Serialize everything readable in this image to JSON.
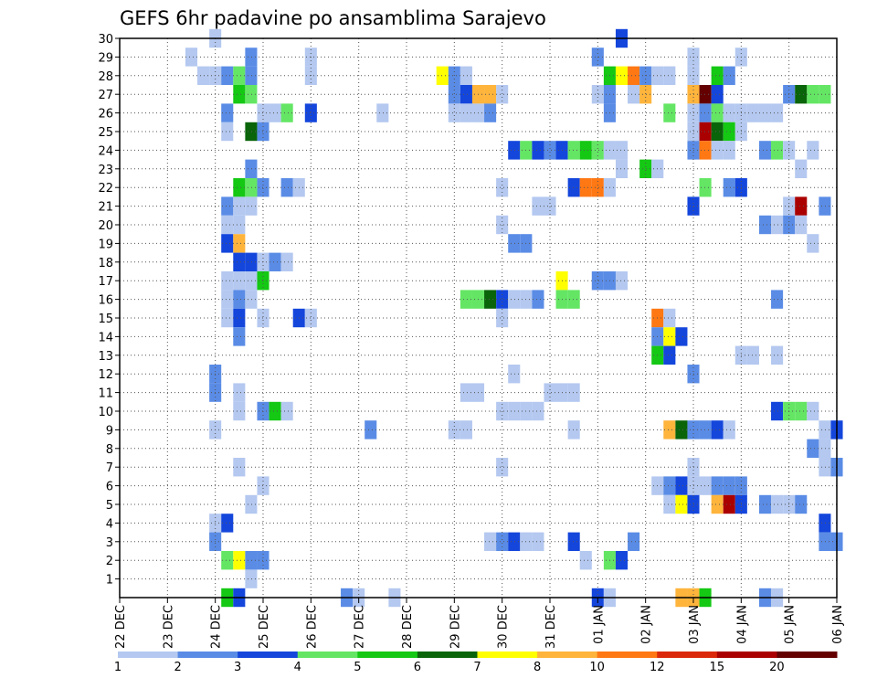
{
  "chart_data": {
    "type": "heatmap",
    "title": "GEFS 6hr padavine po ansamblima Sarajevo",
    "x_labels": [
      "22 DEC",
      "23 DEC",
      "24 DEC",
      "25 DEC",
      "26 DEC",
      "27 DEC",
      "28 DEC",
      "29 DEC",
      "30 DEC",
      "31 DEC",
      "01 JAN",
      "02 JAN",
      "03 JAN",
      "04 JAN",
      "05 JAN",
      "06 JAN"
    ],
    "y_labels": [
      "1",
      "2",
      "3",
      "4",
      "5",
      "6",
      "7",
      "8",
      "9",
      "10",
      "11",
      "12",
      "13",
      "14",
      "15",
      "16",
      "17",
      "18",
      "19",
      "20",
      "21",
      "22",
      "23",
      "24",
      "25",
      "26",
      "27",
      "28",
      "29",
      "30"
    ],
    "y_range": [
      0,
      30
    ],
    "x_steps": 60,
    "grid": true,
    "legend": {
      "placement": "bottom",
      "labels": [
        "1",
        "2",
        "3",
        "4",
        "5",
        "6",
        "7",
        "8",
        "10",
        "12",
        "15",
        "20"
      ],
      "colors": [
        "#b4c8f0",
        "#5a8ce6",
        "#1446dc",
        "#64e664",
        "#14c814",
        "#0a640a",
        "#ffff00",
        "#ffb43c",
        "#ff7814",
        "#dc280a",
        "#aa0000",
        "#640000"
      ]
    },
    "levels": [
      1,
      2,
      3,
      4,
      5,
      6,
      7,
      8,
      10,
      12,
      15,
      20
    ],
    "cells": [
      [
        8,
        30,
        1
      ],
      [
        42,
        30,
        3
      ],
      [
        6,
        29,
        1
      ],
      [
        11,
        29,
        2
      ],
      [
        16,
        29,
        1
      ],
      [
        40,
        29,
        2
      ],
      [
        48,
        29,
        1
      ],
      [
        52,
        29,
        1
      ],
      [
        7,
        28,
        1
      ],
      [
        8,
        28,
        1
      ],
      [
        9,
        28,
        2
      ],
      [
        10,
        28,
        4
      ],
      [
        11,
        28,
        2
      ],
      [
        16,
        28,
        1
      ],
      [
        27,
        28,
        7
      ],
      [
        28,
        28,
        2
      ],
      [
        29,
        28,
        1
      ],
      [
        41,
        28,
        5
      ],
      [
        42,
        28,
        7
      ],
      [
        43,
        28,
        9
      ],
      [
        44,
        28,
        2
      ],
      [
        45,
        28,
        1
      ],
      [
        46,
        28,
        1
      ],
      [
        48,
        28,
        1
      ],
      [
        50,
        28,
        5
      ],
      [
        51,
        28,
        2
      ],
      [
        10,
        27,
        5
      ],
      [
        11,
        27,
        4
      ],
      [
        28,
        27,
        2
      ],
      [
        29,
        27,
        3
      ],
      [
        30,
        27,
        8
      ],
      [
        31,
        27,
        8
      ],
      [
        32,
        27,
        1
      ],
      [
        40,
        27,
        1
      ],
      [
        41,
        27,
        2
      ],
      [
        43,
        27,
        1
      ],
      [
        44,
        27,
        8
      ],
      [
        48,
        27,
        8
      ],
      [
        49,
        27,
        12
      ],
      [
        50,
        27,
        3
      ],
      [
        56,
        27,
        2
      ],
      [
        57,
        27,
        6
      ],
      [
        58,
        27,
        4
      ],
      [
        59,
        27,
        4
      ],
      [
        9,
        26,
        2
      ],
      [
        12,
        26,
        1
      ],
      [
        13,
        26,
        1
      ],
      [
        14,
        26,
        4
      ],
      [
        16,
        26,
        3
      ],
      [
        22,
        26,
        1
      ],
      [
        28,
        26,
        1
      ],
      [
        29,
        26,
        1
      ],
      [
        30,
        26,
        1
      ],
      [
        31,
        26,
        2
      ],
      [
        41,
        26,
        2
      ],
      [
        46,
        26,
        4
      ],
      [
        48,
        26,
        1
      ],
      [
        49,
        26,
        2
      ],
      [
        50,
        26,
        4
      ],
      [
        51,
        26,
        1
      ],
      [
        52,
        26,
        1
      ],
      [
        53,
        26,
        1
      ],
      [
        54,
        26,
        1
      ],
      [
        55,
        26,
        1
      ],
      [
        9,
        25,
        1
      ],
      [
        11,
        25,
        6
      ],
      [
        12,
        25,
        2
      ],
      [
        48,
        25,
        1
      ],
      [
        49,
        25,
        11
      ],
      [
        50,
        25,
        6
      ],
      [
        51,
        25,
        5
      ],
      [
        52,
        25,
        1
      ],
      [
        33,
        24,
        3
      ],
      [
        34,
        24,
        4
      ],
      [
        35,
        24,
        3
      ],
      [
        36,
        24,
        2
      ],
      [
        37,
        24,
        3
      ],
      [
        38,
        24,
        4
      ],
      [
        39,
        24,
        5
      ],
      [
        40,
        24,
        4
      ],
      [
        41,
        24,
        1
      ],
      [
        42,
        24,
        1
      ],
      [
        48,
        24,
        2
      ],
      [
        49,
        24,
        9
      ],
      [
        50,
        24,
        1
      ],
      [
        51,
        24,
        1
      ],
      [
        54,
        24,
        2
      ],
      [
        55,
        24,
        4
      ],
      [
        56,
        24,
        1
      ],
      [
        58,
        24,
        1
      ],
      [
        11,
        23,
        2
      ],
      [
        42,
        23,
        1
      ],
      [
        44,
        23,
        5
      ],
      [
        45,
        23,
        1
      ],
      [
        57,
        23,
        1
      ],
      [
        10,
        22,
        5
      ],
      [
        11,
        22,
        4
      ],
      [
        12,
        22,
        2
      ],
      [
        14,
        22,
        2
      ],
      [
        15,
        22,
        1
      ],
      [
        32,
        22,
        1
      ],
      [
        38,
        22,
        3
      ],
      [
        39,
        22,
        9
      ],
      [
        40,
        22,
        9
      ],
      [
        41,
        22,
        1
      ],
      [
        49,
        22,
        4
      ],
      [
        51,
        22,
        2
      ],
      [
        52,
        22,
        3
      ],
      [
        9,
        21,
        2
      ],
      [
        10,
        21,
        1
      ],
      [
        11,
        21,
        1
      ],
      [
        35,
        21,
        1
      ],
      [
        36,
        21,
        1
      ],
      [
        48,
        21,
        3
      ],
      [
        56,
        21,
        1
      ],
      [
        57,
        21,
        11
      ],
      [
        59,
        21,
        2
      ],
      [
        9,
        20,
        1
      ],
      [
        10,
        20,
        1
      ],
      [
        32,
        20,
        1
      ],
      [
        54,
        20,
        2
      ],
      [
        55,
        20,
        1
      ],
      [
        56,
        20,
        2
      ],
      [
        57,
        20,
        1
      ],
      [
        9,
        19,
        3
      ],
      [
        10,
        19,
        8
      ],
      [
        33,
        19,
        2
      ],
      [
        34,
        19,
        2
      ],
      [
        58,
        19,
        1
      ],
      [
        10,
        18,
        3
      ],
      [
        11,
        18,
        3
      ],
      [
        12,
        18,
        1
      ],
      [
        13,
        18,
        2
      ],
      [
        14,
        18,
        1
      ],
      [
        9,
        17,
        1
      ],
      [
        10,
        17,
        1
      ],
      [
        11,
        17,
        1
      ],
      [
        12,
        17,
        5
      ],
      [
        37,
        17,
        7
      ],
      [
        40,
        17,
        2
      ],
      [
        41,
        17,
        2
      ],
      [
        42,
        17,
        1
      ],
      [
        9,
        16,
        1
      ],
      [
        10,
        16,
        2
      ],
      [
        11,
        16,
        1
      ],
      [
        29,
        16,
        4
      ],
      [
        30,
        16,
        4
      ],
      [
        31,
        16,
        6
      ],
      [
        32,
        16,
        3
      ],
      [
        33,
        16,
        1
      ],
      [
        34,
        16,
        1
      ],
      [
        35,
        16,
        2
      ],
      [
        37,
        16,
        4
      ],
      [
        38,
        16,
        4
      ],
      [
        55,
        16,
        2
      ],
      [
        9,
        15,
        1
      ],
      [
        10,
        15,
        3
      ],
      [
        12,
        15,
        1
      ],
      [
        15,
        15,
        3
      ],
      [
        16,
        15,
        1
      ],
      [
        32,
        15,
        1
      ],
      [
        45,
        15,
        9
      ],
      [
        46,
        15,
        1
      ],
      [
        10,
        14,
        2
      ],
      [
        45,
        14,
        2
      ],
      [
        46,
        14,
        7
      ],
      [
        47,
        14,
        3
      ],
      [
        45,
        13,
        5
      ],
      [
        46,
        13,
        3
      ],
      [
        52,
        13,
        1
      ],
      [
        53,
        13,
        1
      ],
      [
        55,
        13,
        1
      ],
      [
        8,
        12,
        2
      ],
      [
        33,
        12,
        1
      ],
      [
        48,
        12,
        2
      ],
      [
        8,
        11,
        2
      ],
      [
        10,
        11,
        1
      ],
      [
        29,
        11,
        1
      ],
      [
        30,
        11,
        1
      ],
      [
        36,
        11,
        1
      ],
      [
        37,
        11,
        1
      ],
      [
        38,
        11,
        1
      ],
      [
        10,
        10,
        1
      ],
      [
        12,
        10,
        2
      ],
      [
        13,
        10,
        5
      ],
      [
        14,
        10,
        1
      ],
      [
        32,
        10,
        1
      ],
      [
        33,
        10,
        1
      ],
      [
        34,
        10,
        1
      ],
      [
        35,
        10,
        1
      ],
      [
        55,
        10,
        3
      ],
      [
        56,
        10,
        4
      ],
      [
        57,
        10,
        4
      ],
      [
        58,
        10,
        1
      ],
      [
        8,
        9,
        1
      ],
      [
        21,
        9,
        2
      ],
      [
        28,
        9,
        1
      ],
      [
        29,
        9,
        1
      ],
      [
        38,
        9,
        1
      ],
      [
        46,
        9,
        8
      ],
      [
        47,
        9,
        6
      ],
      [
        48,
        9,
        2
      ],
      [
        49,
        9,
        2
      ],
      [
        50,
        9,
        3
      ],
      [
        51,
        9,
        1
      ],
      [
        59,
        9,
        1
      ],
      [
        60,
        9,
        3
      ],
      [
        58,
        8,
        2
      ],
      [
        59,
        8,
        1
      ],
      [
        10,
        7,
        1
      ],
      [
        32,
        7,
        1
      ],
      [
        48,
        7,
        1
      ],
      [
        59,
        7,
        1
      ],
      [
        60,
        7,
        2
      ],
      [
        12,
        6,
        1
      ],
      [
        45,
        6,
        1
      ],
      [
        46,
        6,
        2
      ],
      [
        47,
        6,
        3
      ],
      [
        48,
        6,
        1
      ],
      [
        49,
        6,
        1
      ],
      [
        50,
        6,
        2
      ],
      [
        51,
        6,
        2
      ],
      [
        52,
        6,
        2
      ],
      [
        11,
        5,
        1
      ],
      [
        46,
        5,
        1
      ],
      [
        47,
        5,
        7
      ],
      [
        48,
        5,
        3
      ],
      [
        50,
        5,
        8
      ],
      [
        51,
        5,
        11
      ],
      [
        52,
        5,
        3
      ],
      [
        54,
        5,
        2
      ],
      [
        55,
        5,
        1
      ],
      [
        56,
        5,
        1
      ],
      [
        57,
        5,
        2
      ],
      [
        8,
        4,
        1
      ],
      [
        9,
        4,
        3
      ],
      [
        59,
        4,
        3
      ],
      [
        8,
        3,
        2
      ],
      [
        31,
        3,
        1
      ],
      [
        32,
        3,
        2
      ],
      [
        33,
        3,
        3
      ],
      [
        34,
        3,
        1
      ],
      [
        35,
        3,
        1
      ],
      [
        38,
        3,
        3
      ],
      [
        43,
        3,
        2
      ],
      [
        59,
        3,
        2
      ],
      [
        60,
        3,
        2
      ],
      [
        9,
        2,
        4
      ],
      [
        10,
        2,
        7
      ],
      [
        11,
        2,
        2
      ],
      [
        12,
        2,
        2
      ],
      [
        39,
        2,
        1
      ],
      [
        41,
        2,
        4
      ],
      [
        42,
        2,
        3
      ],
      [
        11,
        1,
        1
      ],
      [
        9,
        0,
        5
      ],
      [
        10,
        0,
        3
      ],
      [
        19,
        0,
        2
      ],
      [
        20,
        0,
        1
      ],
      [
        23,
        0,
        1
      ],
      [
        40,
        0,
        3
      ],
      [
        41,
        0,
        1
      ],
      [
        47,
        0,
        8
      ],
      [
        48,
        0,
        8
      ],
      [
        49,
        0,
        5
      ],
      [
        54,
        0,
        2
      ],
      [
        55,
        0,
        1
      ]
    ]
  }
}
